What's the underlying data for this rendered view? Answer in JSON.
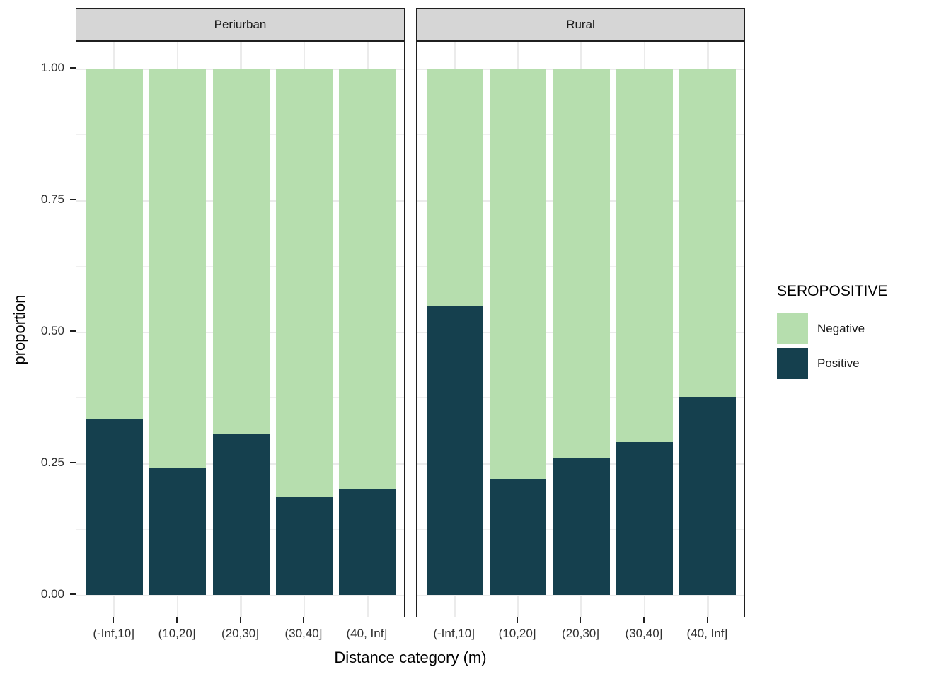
{
  "chart_data": {
    "type": "bar",
    "stacked": true,
    "normalized": true,
    "title": "",
    "xlabel": "Distance category (m)",
    "ylabel": "proportion",
    "ylim": [
      0,
      1
    ],
    "grid": true,
    "y_tick_values": [
      0,
      0.25,
      0.5,
      0.75,
      1
    ],
    "y_tick_labels": [
      "0.00",
      "0.25",
      "0.50",
      "0.75",
      "1.00"
    ],
    "y_minor_tick_values": [
      0.125,
      0.375,
      0.625,
      0.875
    ],
    "categories": [
      "(-Inf,10]",
      "(10,20]",
      "(20,30]",
      "(30,40]",
      "(40, Inf]"
    ],
    "facets": [
      {
        "label": "Periurban",
        "series": [
          {
            "name": "Negative",
            "values": [
              0.665,
              0.76,
              0.695,
              0.815,
              0.8
            ]
          },
          {
            "name": "Positive",
            "values": [
              0.335,
              0.24,
              0.305,
              0.185,
              0.2
            ]
          }
        ]
      },
      {
        "label": "Rural",
        "series": [
          {
            "name": "Negative",
            "values": [
              0.45,
              0.78,
              0.74,
              0.71,
              0.625
            ]
          },
          {
            "name": "Positive",
            "values": [
              0.55,
              0.22,
              0.26,
              0.29,
              0.375
            ]
          }
        ]
      }
    ],
    "legend": {
      "title": "SEROPOSITIVE",
      "position": "right",
      "entries": [
        {
          "label": "Negative",
          "color": "#b6deae"
        },
        {
          "label": "Positive",
          "color": "#15404e"
        }
      ]
    },
    "colors": {
      "negative_fill": "#b6deae",
      "positive_fill": "#15404e",
      "strip_background": "#d6d6d6",
      "panel_border": "#1f1f1f",
      "gridline": "#ebebeb"
    }
  }
}
